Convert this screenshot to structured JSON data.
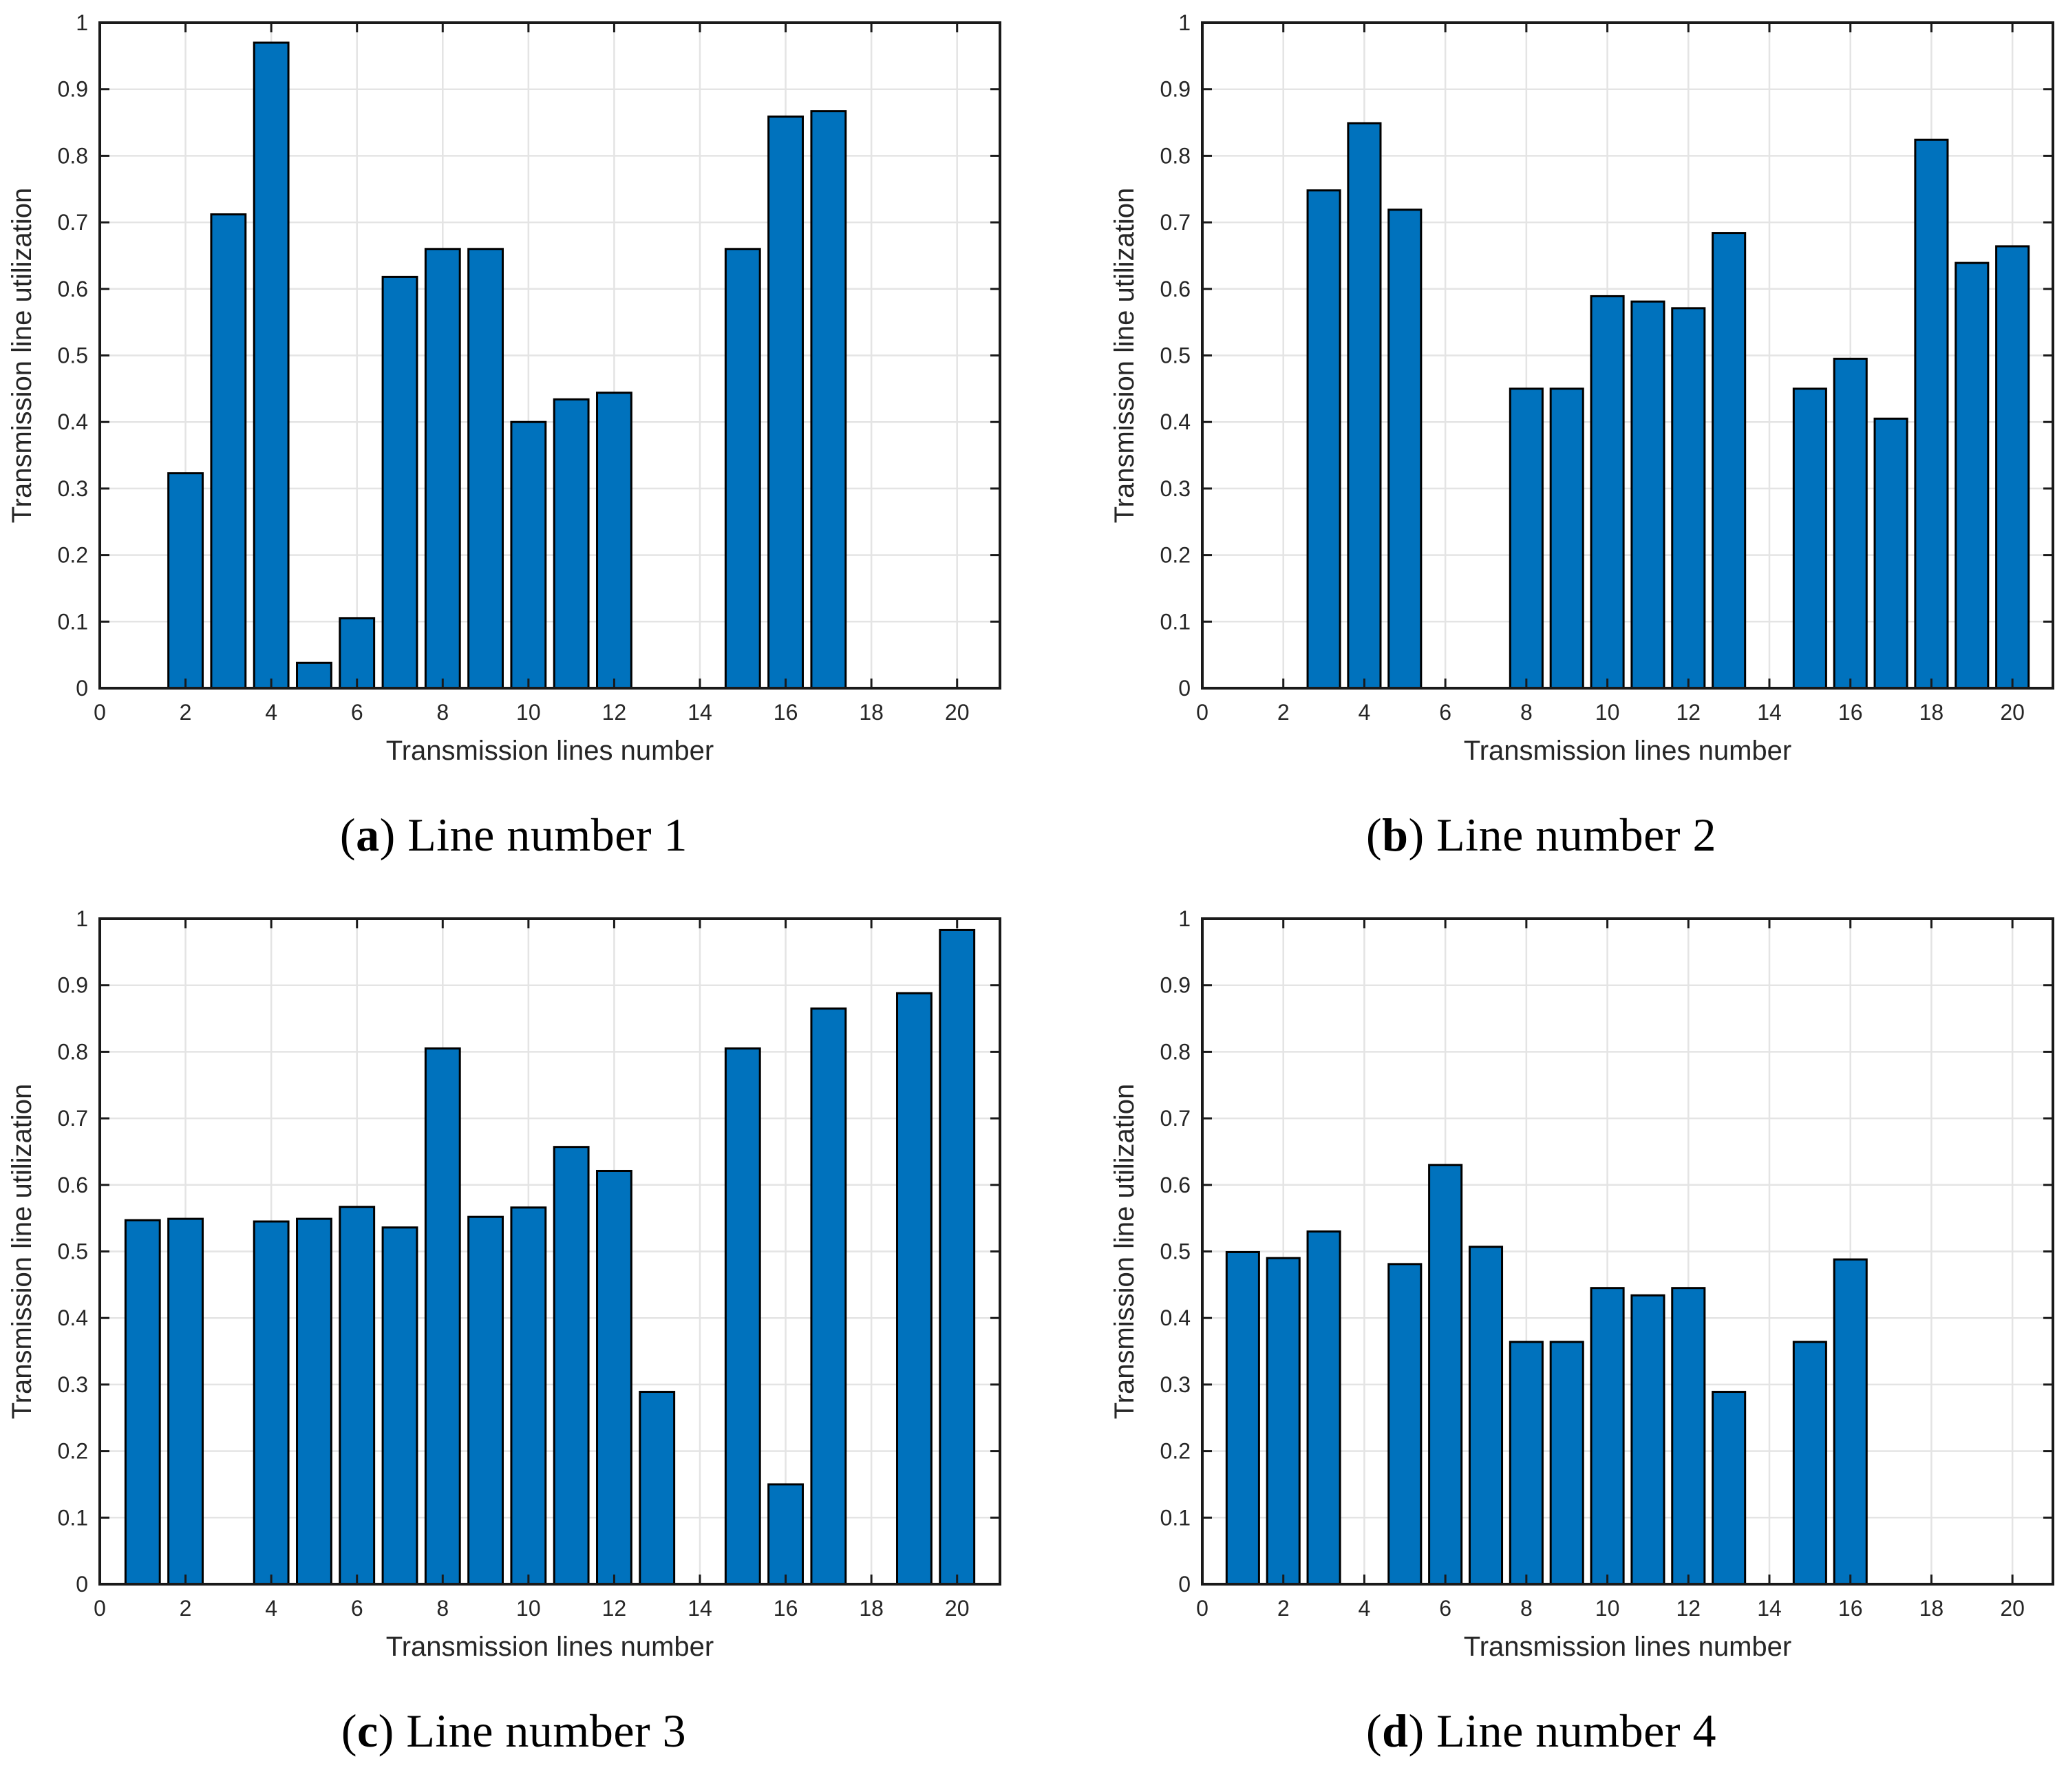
{
  "figure": {
    "background": "#FFFFFF",
    "bar_fill": "#0072BD",
    "bar_edge": "#000000",
    "grid_color": "#E4E4E4",
    "axis_color": "#1A1A1A",
    "tick_label_color": "#262626"
  },
  "chart_data": [
    {
      "type": "bar",
      "panel": "a",
      "caption": {
        "open": "(",
        "letter": "a",
        "rest": ") Line number 1"
      },
      "xlabel": "Transmission lines number",
      "ylabel": "Transmission line utilization",
      "xlim": [
        0,
        21
      ],
      "ylim": [
        0,
        1
      ],
      "grid": true,
      "box": true,
      "bar_width": 0.8,
      "xticks": [
        0,
        2,
        4,
        6,
        8,
        10,
        12,
        14,
        16,
        18,
        20
      ],
      "xtick_labels": [
        "0",
        "2",
        "4",
        "6",
        "8",
        "10",
        "12",
        "14",
        "16",
        "18",
        "20"
      ],
      "yticks": [
        0,
        0.1,
        0.2,
        0.3,
        0.4,
        0.5,
        0.6,
        0.7,
        0.8,
        0.9,
        1
      ],
      "ytick_labels": [
        "0",
        "0.1",
        "0.2",
        "0.3",
        "0.4",
        "0.5",
        "0.6",
        "0.7",
        "0.8",
        "0.9",
        "1"
      ],
      "x": [
        2,
        3,
        4,
        5,
        6,
        7,
        8,
        9,
        10,
        11,
        12,
        15,
        16,
        17
      ],
      "values": [
        0.323,
        0.712,
        0.97,
        0.038,
        0.105,
        0.618,
        0.66,
        0.66,
        0.4,
        0.434,
        0.444,
        0.66,
        0.859,
        0.867
      ]
    },
    {
      "type": "bar",
      "panel": "b",
      "caption": {
        "open": "(",
        "letter": "b",
        "rest": ") Line number 2"
      },
      "xlabel": "Transmission lines number",
      "ylabel": "Transmission line utilization",
      "xlim": [
        0,
        21
      ],
      "ylim": [
        0,
        1
      ],
      "grid": true,
      "box": true,
      "bar_width": 0.8,
      "xticks": [
        0,
        2,
        4,
        6,
        8,
        10,
        12,
        14,
        16,
        18,
        20
      ],
      "xtick_labels": [
        "0",
        "2",
        "4",
        "6",
        "8",
        "10",
        "12",
        "14",
        "16",
        "18",
        "20"
      ],
      "yticks": [
        0,
        0.1,
        0.2,
        0.3,
        0.4,
        0.5,
        0.6,
        0.7,
        0.8,
        0.9,
        1
      ],
      "ytick_labels": [
        "0",
        "0.1",
        "0.2",
        "0.3",
        "0.4",
        "0.5",
        "0.6",
        "0.7",
        "0.8",
        "0.9",
        "1"
      ],
      "x": [
        3,
        4,
        5,
        8,
        9,
        10,
        11,
        12,
        13,
        15,
        16,
        17,
        18,
        19,
        20
      ],
      "values": [
        0.748,
        0.849,
        0.719,
        0.45,
        0.45,
        0.589,
        0.581,
        0.571,
        0.684,
        0.45,
        0.495,
        0.405,
        0.824,
        0.639,
        0.664
      ]
    },
    {
      "type": "bar",
      "panel": "c",
      "caption": {
        "open": "(",
        "letter": "c",
        "rest": ") Line number 3"
      },
      "xlabel": "Transmission lines number",
      "ylabel": "Transmission line utilization",
      "xlim": [
        0,
        21
      ],
      "ylim": [
        0,
        1
      ],
      "grid": true,
      "box": true,
      "bar_width": 0.8,
      "xticks": [
        0,
        2,
        4,
        6,
        8,
        10,
        12,
        14,
        16,
        18,
        20
      ],
      "xtick_labels": [
        "0",
        "2",
        "4",
        "6",
        "8",
        "10",
        "12",
        "14",
        "16",
        "18",
        "20"
      ],
      "yticks": [
        0,
        0.1,
        0.2,
        0.3,
        0.4,
        0.5,
        0.6,
        0.7,
        0.8,
        0.9,
        1
      ],
      "ytick_labels": [
        "0",
        "0.1",
        "0.2",
        "0.3",
        "0.4",
        "0.5",
        "0.6",
        "0.7",
        "0.8",
        "0.9",
        "1"
      ],
      "x": [
        1,
        2,
        4,
        5,
        6,
        7,
        8,
        9,
        10,
        11,
        12,
        13,
        15,
        16,
        17,
        19,
        20
      ],
      "values": [
        0.547,
        0.549,
        0.545,
        0.549,
        0.567,
        0.536,
        0.805,
        0.552,
        0.566,
        0.657,
        0.621,
        0.289,
        0.805,
        0.15,
        0.865,
        0.888,
        0.983
      ]
    },
    {
      "type": "bar",
      "panel": "d",
      "caption": {
        "open": "(",
        "letter": "d",
        "rest": ") Line number 4"
      },
      "xlabel": "Transmission lines number",
      "ylabel": "Transmission line utilization",
      "xlim": [
        0,
        21
      ],
      "ylim": [
        0,
        1
      ],
      "grid": true,
      "box": true,
      "bar_width": 0.8,
      "xticks": [
        0,
        2,
        4,
        6,
        8,
        10,
        12,
        14,
        16,
        18,
        20
      ],
      "xtick_labels": [
        "0",
        "2",
        "4",
        "6",
        "8",
        "10",
        "12",
        "14",
        "16",
        "18",
        "20"
      ],
      "yticks": [
        0,
        0.1,
        0.2,
        0.3,
        0.4,
        0.5,
        0.6,
        0.7,
        0.8,
        0.9,
        1
      ],
      "ytick_labels": [
        "0",
        "0.1",
        "0.2",
        "0.3",
        "0.4",
        "0.5",
        "0.6",
        "0.7",
        "0.8",
        "0.9",
        "1"
      ],
      "x": [
        1,
        2,
        3,
        5,
        6,
        7,
        8,
        9,
        10,
        11,
        12,
        13,
        15,
        16
      ],
      "values": [
        0.499,
        0.49,
        0.53,
        0.481,
        0.63,
        0.507,
        0.364,
        0.364,
        0.445,
        0.434,
        0.445,
        0.289,
        0.364,
        0.488
      ]
    }
  ]
}
